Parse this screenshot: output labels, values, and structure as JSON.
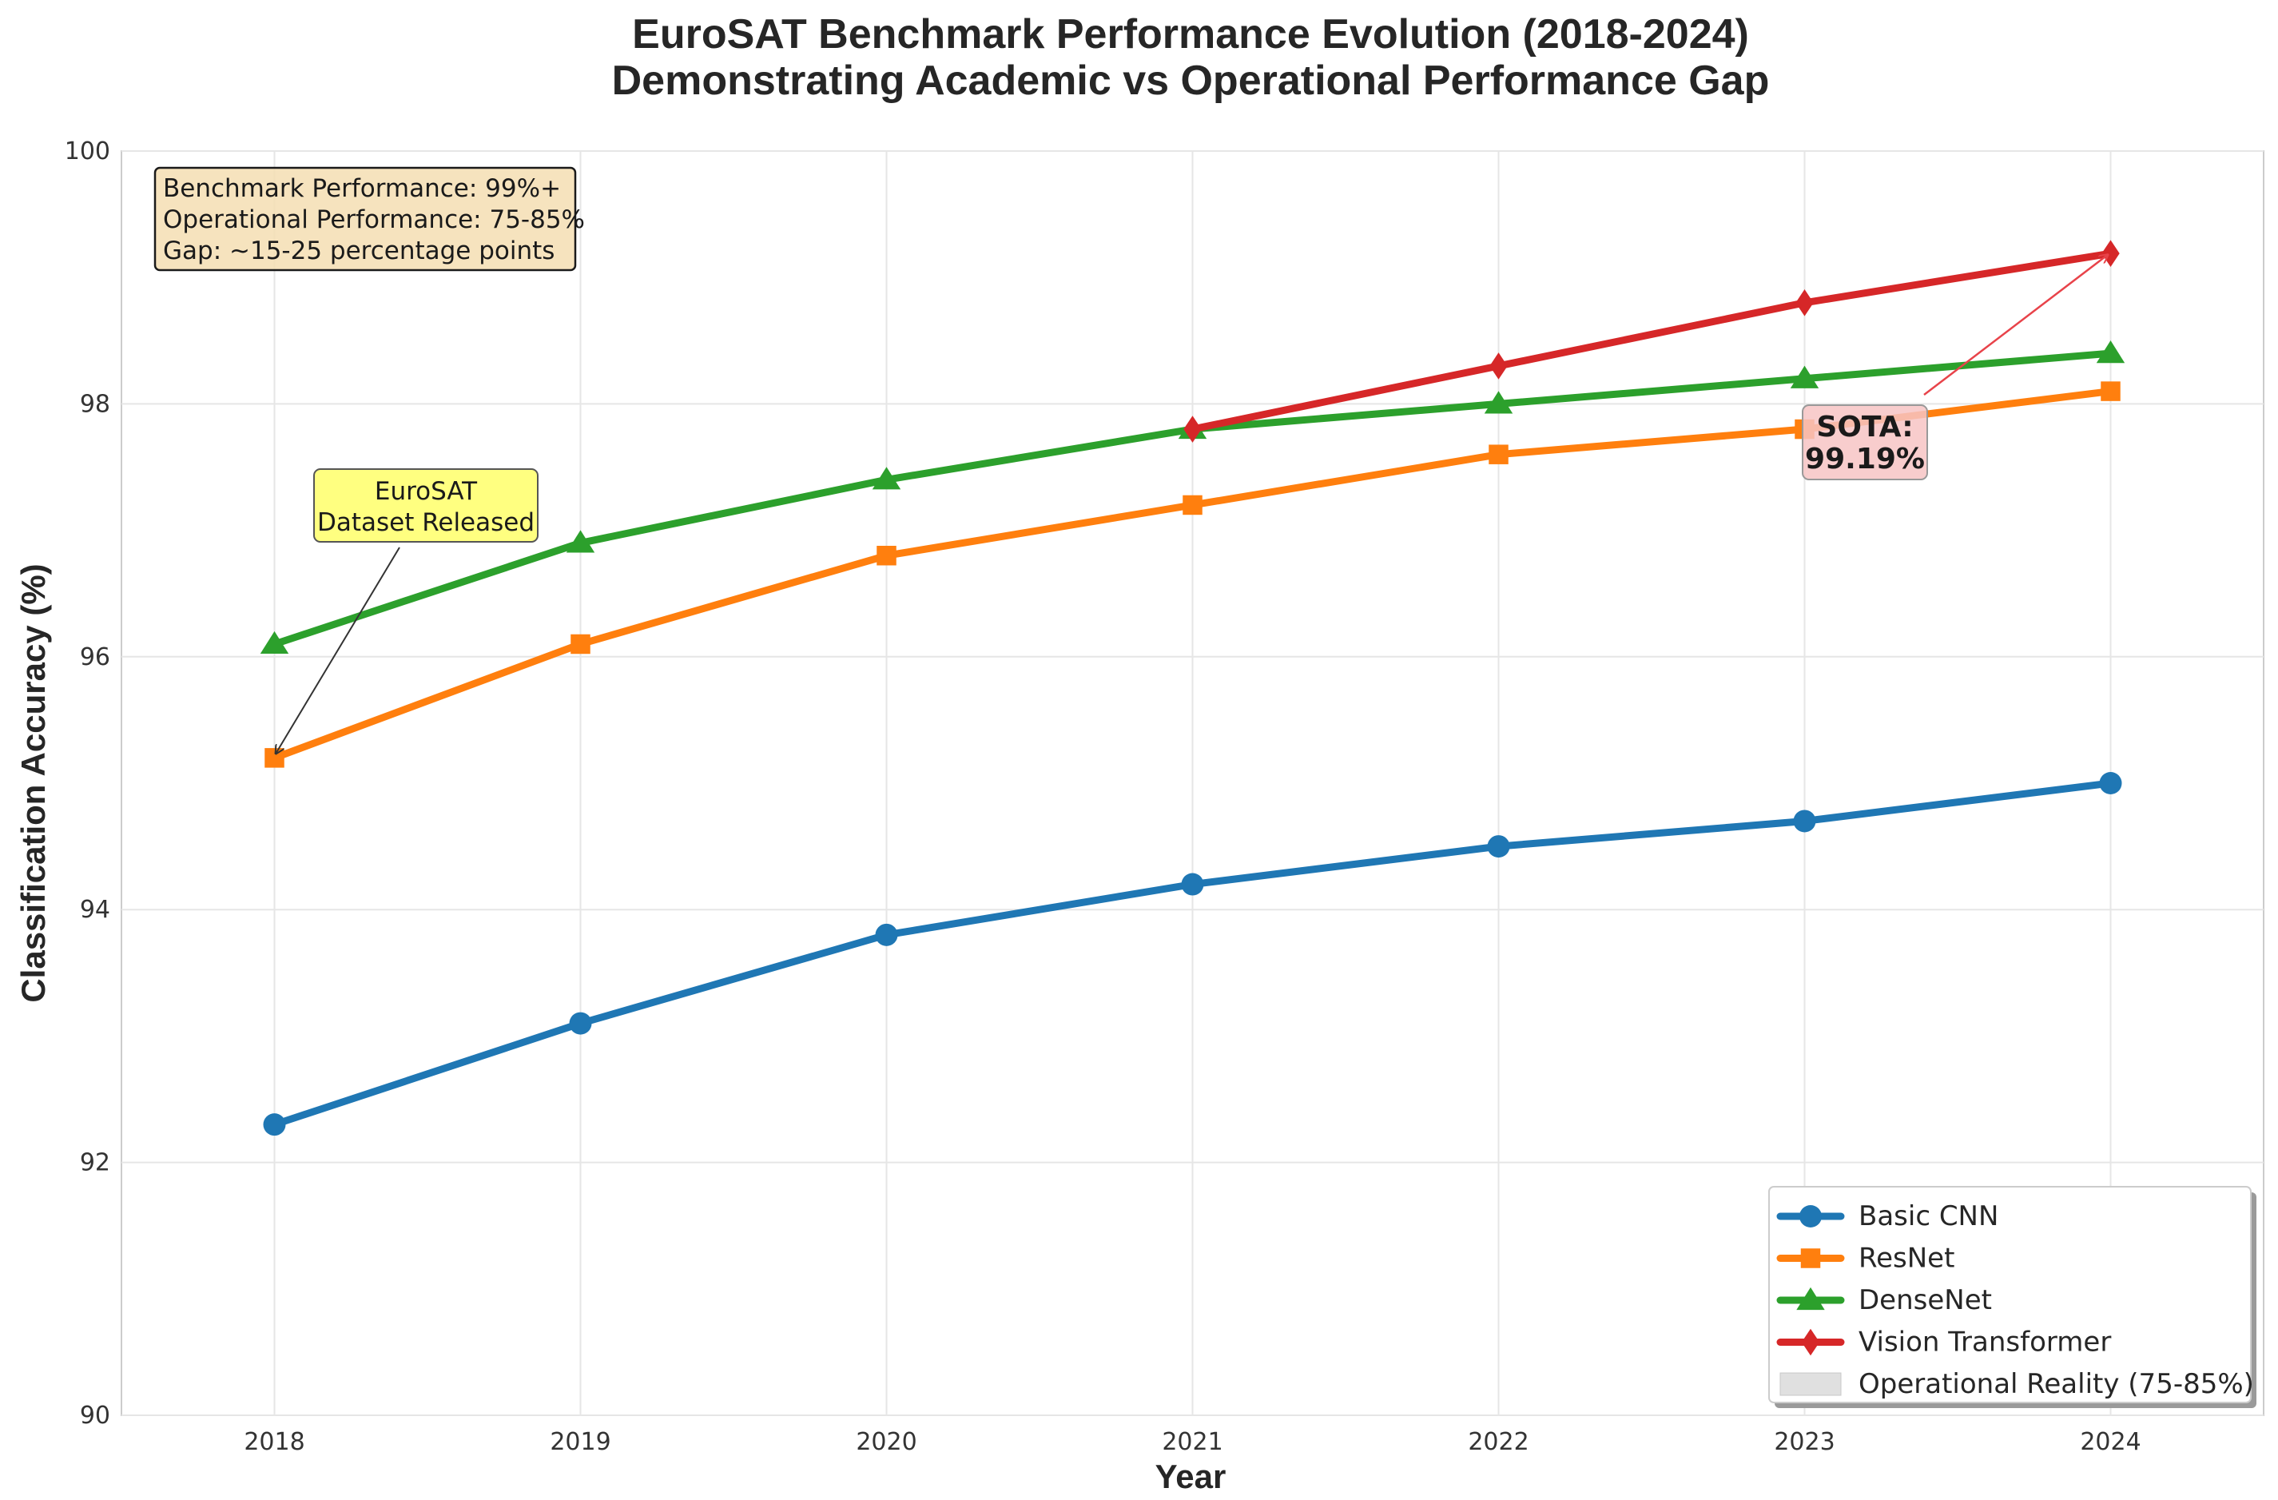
{
  "chart_data": {
    "type": "line",
    "title_line1": "EuroSAT Benchmark Performance Evolution (2018-2024)",
    "title_line2": "Demonstrating Academic vs Operational Performance Gap",
    "xlabel": "Year",
    "ylabel": "Classification Accuracy (%)",
    "x": [
      2018,
      2019,
      2020,
      2021,
      2022,
      2023,
      2024
    ],
    "xlim": [
      2017.5,
      2024.5
    ],
    "ylim": [
      90,
      100
    ],
    "yticks": [
      90,
      92,
      94,
      96,
      98,
      100
    ],
    "grid": true,
    "legend_position": "bottom-right",
    "series": [
      {
        "name": "Basic CNN",
        "color": "#1f77b4",
        "marker": "circle",
        "x": [
          2018,
          2019,
          2020,
          2021,
          2022,
          2023,
          2024
        ],
        "values": [
          92.3,
          93.1,
          93.8,
          94.2,
          94.5,
          94.7,
          95.0
        ]
      },
      {
        "name": "ResNet",
        "color": "#ff7f0e",
        "marker": "square",
        "x": [
          2018,
          2019,
          2020,
          2021,
          2022,
          2023,
          2024
        ],
        "values": [
          95.2,
          96.1,
          96.8,
          97.2,
          97.6,
          97.8,
          98.1
        ]
      },
      {
        "name": "DenseNet",
        "color": "#2ca02c",
        "marker": "triangle",
        "x": [
          2018,
          2019,
          2020,
          2021,
          2022,
          2023,
          2024
        ],
        "values": [
          96.1,
          96.9,
          97.4,
          97.8,
          98.0,
          98.2,
          98.4
        ]
      },
      {
        "name": "Vision Transformer",
        "color": "#d62728",
        "marker": "diamond",
        "x": [
          2021,
          2022,
          2023,
          2024
        ],
        "values": [
          97.8,
          98.3,
          98.8,
          99.19
        ]
      }
    ],
    "legend_extra": {
      "name": "Operational Reality (75-85%)",
      "color": "#e0e0e0"
    },
    "info_box": {
      "lines": [
        "Benchmark Performance: 99%+",
        "Operational Performance: 75-85%",
        "Gap: ~15-25 percentage points"
      ]
    },
    "annotations": [
      {
        "lines": [
          "EuroSAT",
          "Dataset Released"
        ],
        "point": {
          "x": 2018,
          "y": 95.2
        },
        "color": "#ffff80"
      },
      {
        "lines": [
          "SOTA:",
          "99.19%"
        ],
        "point": {
          "x": 2024,
          "y": 99.19
        },
        "color": "#f7c4c4"
      }
    ]
  }
}
